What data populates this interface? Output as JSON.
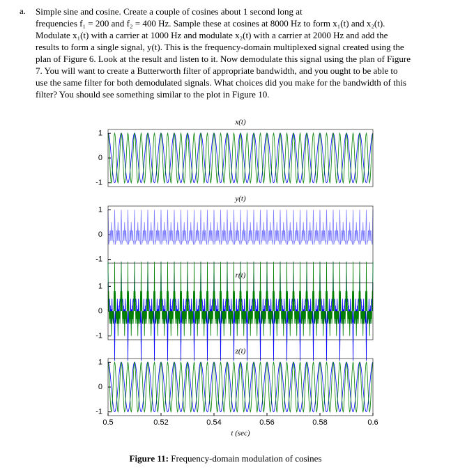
{
  "document": {
    "item_label": "a.",
    "paragraph": [
      [
        "Simple sine and cosine. Create a couple of cosines about 1 second long at"
      ],
      [
        "frequencies f₁ = ",
        200,
        " and f₂ = ",
        400,
        " Hz. Sample these at cosines at ",
        8000,
        " Hz to form x₁(t) and x₂(t)."
      ],
      [
        "Modulate x₁(t) with a carrier at ",
        1000,
        " Hz and modulate x₂(t) with a carrier at ",
        2000,
        " Hz and add the"
      ],
      [
        "results to form a single signal, y(t). This is the frequency-domain multiplexed signal created using the"
      ],
      [
        "plan of Figure 6. Look at the result and listen to it. Now demodulate this signal using the plan of Figure"
      ],
      [
        "7. You will want to create a Butterworth filter of appropriate bandwidth, and you ought to be able to"
      ],
      [
        "use the same filter for both demodulated signals. What choices did you make for the bandwidth of this"
      ],
      [
        "filter? You should see something similar to the plot in Figure 10."
      ]
    ],
    "caption": {
      "label": "Figure 11:",
      "text": "Frequency-domain modulation of cosines"
    }
  },
  "chart_data": [
    {
      "type": "line",
      "title": "x(t)",
      "xlim": [
        0.5,
        0.6
      ],
      "ylim": [
        -1.15,
        1.15
      ],
      "yticks": [
        -1,
        0,
        1
      ],
      "series": [
        {
          "color": "#0000ff"
        },
        {
          "color": "#008000"
        }
      ]
    },
    {
      "type": "line",
      "title": "y(t)",
      "xlim": [
        0.5,
        0.6
      ],
      "ylim": [
        -1.15,
        1.15
      ],
      "yticks": [
        -1,
        0,
        1
      ],
      "series": [
        {
          "color": "#7f7fff"
        }
      ]
    },
    {
      "type": "line",
      "title": "r(t)",
      "xlim": [
        0.5,
        0.6
      ],
      "ylim": [
        -1.15,
        1.15
      ],
      "yticks": [
        -1,
        0,
        1
      ],
      "series": [
        {
          "color": "#0000ff"
        },
        {
          "color": "#008000"
        }
      ]
    },
    {
      "type": "line",
      "title": "z(t)",
      "xlim": [
        0.5,
        0.6
      ],
      "ylim": [
        -1.15,
        1.15
      ],
      "yticks": [
        -1,
        0,
        1
      ],
      "xticks": [
        0.5,
        0.52,
        0.54,
        0.56,
        0.58,
        0.6
      ],
      "xlabel": "t (sec)",
      "series": [
        {
          "color": "#0000ff"
        },
        {
          "color": "#008000"
        }
      ]
    }
  ]
}
